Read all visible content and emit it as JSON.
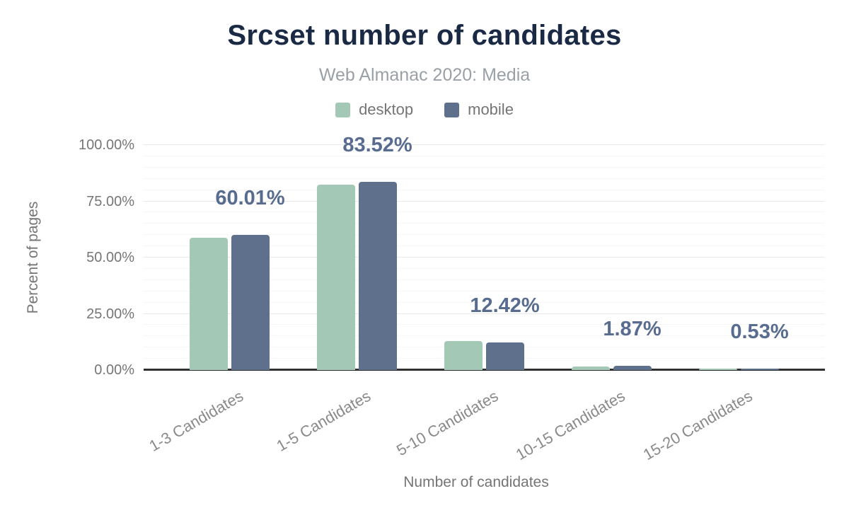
{
  "header": {
    "title": "Srcset number of candidates",
    "subtitle": "Web Almanac 2020: Media"
  },
  "legend": [
    {
      "label": "desktop",
      "color": "#a3c9b6"
    },
    {
      "label": "mobile",
      "color": "#5e708c"
    }
  ],
  "chart_data": {
    "type": "bar",
    "title": "Srcset number of candidates",
    "subtitle": "Web Almanac 2020: Media",
    "categories": [
      "1-3 Candidates",
      "1-5 Candidates",
      "5-10 Candidates",
      "10-15 Candidates",
      "15-20 Candidates"
    ],
    "series": [
      {
        "name": "desktop",
        "color": "#a3c9b6",
        "values": [
          58.9,
          82.4,
          13.0,
          1.6,
          0.5
        ]
      },
      {
        "name": "mobile",
        "color": "#5e708c",
        "values": [
          60.01,
          83.52,
          12.42,
          1.87,
          0.53
        ]
      }
    ],
    "value_labels": [
      "60.01%",
      "83.52%",
      "12.42%",
      "1.87%",
      "0.53%"
    ],
    "value_labels_series": "mobile",
    "value_label_color": "#586c8f",
    "xlabel": "Number of candidates",
    "ylabel": "Percent of pages",
    "ylim": [
      0,
      100
    ],
    "yticks": [
      {
        "value": 0,
        "label": "0.00%"
      },
      {
        "value": 25,
        "label": "25.00%"
      },
      {
        "value": 50,
        "label": "50.00%"
      },
      {
        "value": 75,
        "label": "75.00%"
      },
      {
        "value": 100,
        "label": "100.00%"
      }
    ],
    "grid": {
      "major_step": 25,
      "minor_step": 5
    },
    "legend_position": "top",
    "title_color": "#1b2a44"
  }
}
